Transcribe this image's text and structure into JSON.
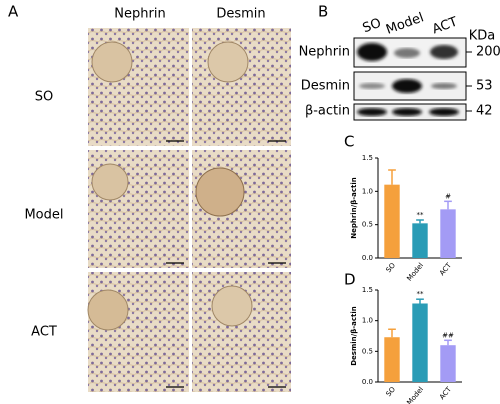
{
  "panel_labels": [
    "A",
    "B",
    "C",
    "D"
  ],
  "micrographs": {
    "columns": [
      "Nephrin",
      "Desmin"
    ],
    "rows": [
      "SO",
      "Model",
      "ACT"
    ]
  },
  "blot": {
    "lanes": [
      "SO",
      "Model",
      "ACT"
    ],
    "unit": "KDa",
    "proteins": [
      {
        "name": "Nephrin",
        "size": 200
      },
      {
        "name": "Desmin",
        "size": 53
      },
      {
        "name": "β-actin",
        "size": 42
      }
    ]
  },
  "chart_data": [
    {
      "type": "bar",
      "ylabel": "Nephrin/β-actin",
      "categories": [
        "SO",
        "Model",
        "ACT"
      ],
      "values": [
        1.1,
        0.52,
        0.73
      ],
      "errors": [
        0.22,
        0.05,
        0.12
      ],
      "annotations": [
        null,
        "**",
        "#"
      ],
      "colors": [
        "#f5a03c",
        "#2a9cb6",
        "#a39bf5"
      ],
      "ylim": [
        0,
        1.5
      ],
      "yticks": [
        {
          "value": 0,
          "label": "0.0"
        },
        0.5,
        {
          "value": 1,
          "label": "1.0"
        },
        1.5
      ]
    },
    {
      "type": "bar",
      "ylabel": "Desmin/β-actin",
      "categories": [
        "SO",
        "Model",
        "ACT"
      ],
      "values": [
        0.73,
        1.28,
        0.6
      ],
      "errors": [
        0.13,
        0.07,
        0.08
      ],
      "annotations": [
        null,
        "**",
        "##"
      ],
      "colors": [
        "#f5a03c",
        "#2a9cb6",
        "#a39bf5"
      ],
      "ylim": [
        0,
        1.5
      ],
      "yticks": [
        {
          "value": 0,
          "label": "0.0"
        },
        0.5,
        {
          "value": 1,
          "label": "1.0"
        },
        1.5
      ]
    }
  ]
}
